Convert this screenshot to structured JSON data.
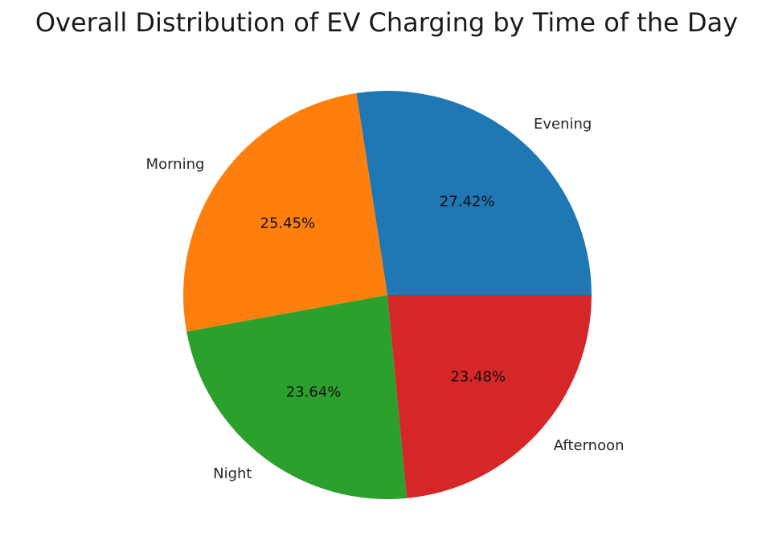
{
  "chart_data": {
    "type": "pie",
    "title": "Overall Distribution of EV Charging by Time of the Day",
    "start_angle_deg": 0,
    "direction": "counterclockwise",
    "slices": [
      {
        "label": "Evening",
        "value": 27.42,
        "pct_label": "27.42%",
        "color": "#1f77b4"
      },
      {
        "label": "Morning",
        "value": 25.45,
        "pct_label": "25.45%",
        "color": "#ff7f0e"
      },
      {
        "label": "Night",
        "value": 23.64,
        "pct_label": "23.64%",
        "color": "#2ca02c"
      },
      {
        "label": "Afternoon",
        "value": 23.48,
        "pct_label": "23.48%",
        "color": "#d62728"
      }
    ]
  }
}
